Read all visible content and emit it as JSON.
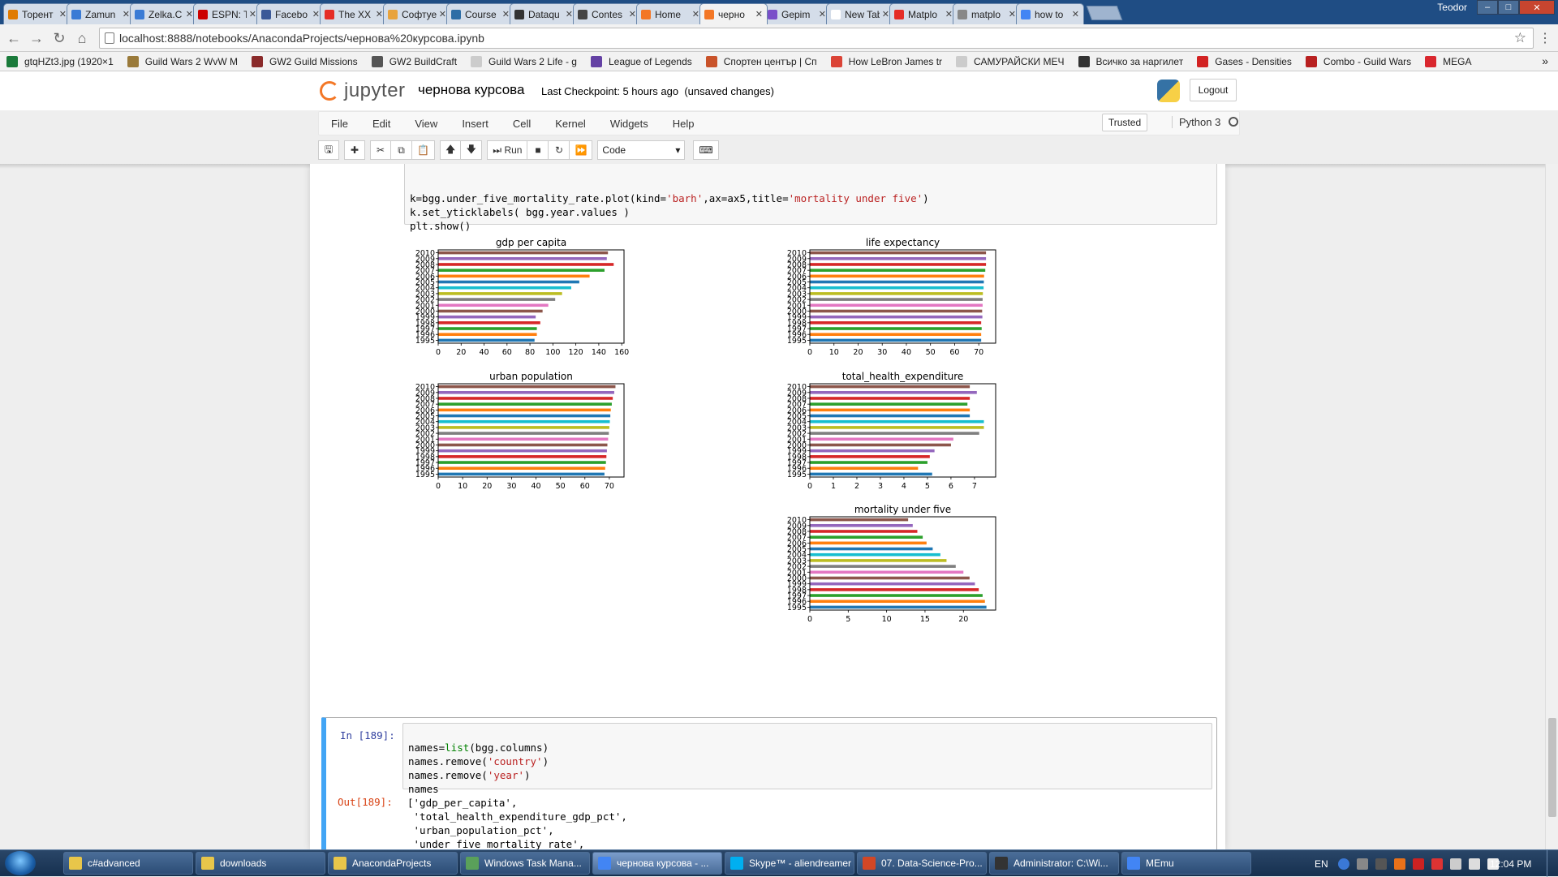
{
  "browser": {
    "tabs": [
      {
        "label": "Торент",
        "color": "#e07b00"
      },
      {
        "label": "Zamun",
        "color": "#3a7bd5"
      },
      {
        "label": "Zelka.C",
        "color": "#3a7bd5"
      },
      {
        "label": "ESPN: T",
        "color": "#cc0000"
      },
      {
        "label": "Facebo",
        "color": "#3b5998"
      },
      {
        "label": "The XX",
        "color": "#e52d27"
      },
      {
        "label": "Софтуе",
        "color": "#e8a33d"
      },
      {
        "label": "Course",
        "color": "#2e6ea6"
      },
      {
        "label": "Dataqu",
        "color": "#333333"
      },
      {
        "label": "Contes",
        "color": "#444444"
      },
      {
        "label": "Home",
        "color": "#f37726"
      },
      {
        "label": "черно",
        "color": "#f37726",
        "active": true
      },
      {
        "label": "Gepim",
        "color": "#7a4fc9"
      },
      {
        "label": "New Tab",
        "color": "#ffffff"
      },
      {
        "label": "Matplo",
        "color": "#e52d27"
      },
      {
        "label": "matplo",
        "color": "#888888"
      },
      {
        "label": "how to",
        "color": "#4285f4"
      }
    ],
    "user": "Teodor",
    "url": "localhost:8888/notebooks/AnacondaProjects/чернова%20курсова.ipynb",
    "bookmarks": [
      {
        "label": "gtqHZt3.jpg (1920×1",
        "color": "#1a7a3a"
      },
      {
        "label": "Guild Wars 2 WvW M",
        "color": "#9a7a3a"
      },
      {
        "label": "GW2 Guild Missions",
        "color": "#8a2a2a"
      },
      {
        "label": "GW2 BuildCraft",
        "color": "#555555"
      },
      {
        "label": "Guild Wars 2 Life - g",
        "color": "#cccccc"
      },
      {
        "label": "League of Legends",
        "color": "#6441a4"
      },
      {
        "label": "Спортен център | Сп",
        "color": "#c9532a"
      },
      {
        "label": "How LeBron James tr",
        "color": "#db4437"
      },
      {
        "label": "САМУРАЙСКИ МЕЧ",
        "color": "#cccccc"
      },
      {
        "label": "Всичко за наргилет",
        "color": "#333333"
      },
      {
        "label": "Gases - Densities",
        "color": "#d22222"
      },
      {
        "label": "Combo - Guild Wars",
        "color": "#b82020"
      },
      {
        "label": "MEGA",
        "color": "#d9272e"
      }
    ]
  },
  "jupyter": {
    "logo_text": "jupyter",
    "notebook_name": "чернова курсова",
    "checkpoint": "Last Checkpoint: 5 hours ago",
    "unsaved": "(unsaved changes)",
    "logout": "Logout",
    "menu": [
      "File",
      "Edit",
      "View",
      "Insert",
      "Cell",
      "Kernel",
      "Widgets",
      "Help"
    ],
    "trusted": "Trusted",
    "kernel": "Python 3",
    "toolbar": {
      "run_label": "Run",
      "cell_type": "Code"
    }
  },
  "cells": {
    "prev_code": [
      {
        "pre": "k=bgg.under_five_mortality_rate.plot(kind=",
        "s1": "'barh'",
        "mid": ",ax=ax5,title=",
        "s2": "'mortality under five'",
        "post": ")"
      },
      {
        "text": "k.set_yticklabels( bgg.year.values )"
      },
      {
        "text": "plt.show()"
      }
    ],
    "in_prompt": "In [189]:",
    "in_code": [
      {
        "pre": "names=",
        "kw": "list",
        "post": "(bgg.columns)"
      },
      {
        "pre": "names.remove(",
        "s": "'country'",
        "post": ")"
      },
      {
        "pre": "names.remove(",
        "s": "'year'",
        "post": ")"
      },
      {
        "pre": "names",
        "s": "",
        "post": ""
      }
    ],
    "out_prompt": "Out[189]:",
    "out_lines": [
      "['gdp_per_capita',",
      " 'total_health_expenditure_gdp_pct',",
      " 'urban_population_pct',",
      " 'under_five_mortality_rate',"
    ]
  },
  "chart_data": [
    {
      "type": "bar",
      "orientation": "horizontal",
      "title": "gdp per capita",
      "categories": [
        "1995",
        "1996",
        "1997",
        "1998",
        "1999",
        "2000",
        "2001",
        "2002",
        "2003",
        "2004",
        "2005",
        "2006",
        "2007",
        "2008",
        "2009",
        "2010"
      ],
      "values": [
        84,
        86,
        86,
        89,
        85,
        91,
        96,
        102,
        108,
        116,
        123,
        132,
        145,
        153,
        147,
        148
      ],
      "xlim": [
        0,
        162
      ],
      "xticks": [
        0,
        20,
        40,
        60,
        80,
        100,
        120,
        140,
        160
      ]
    },
    {
      "type": "bar",
      "orientation": "horizontal",
      "title": "life expectancy",
      "categories": [
        "1995",
        "1996",
        "1997",
        "1998",
        "1999",
        "2000",
        "2001",
        "2002",
        "2003",
        "2004",
        "2005",
        "2006",
        "2007",
        "2008",
        "2009",
        "2010"
      ],
      "values": [
        71.0,
        71.0,
        71.2,
        71.0,
        71.5,
        71.4,
        71.6,
        71.6,
        71.7,
        72.0,
        72.1,
        72.2,
        72.7,
        73.0,
        73.0,
        73.0
      ],
      "xlim": [
        0,
        77
      ],
      "xticks": [
        0,
        10,
        20,
        30,
        40,
        50,
        60,
        70
      ]
    },
    {
      "type": "bar",
      "orientation": "horizontal",
      "title": "urban population",
      "categories": [
        "1995",
        "1996",
        "1997",
        "1998",
        "1999",
        "2000",
        "2001",
        "2002",
        "2003",
        "2004",
        "2005",
        "2006",
        "2007",
        "2008",
        "2009",
        "2010"
      ],
      "values": [
        68.0,
        68.3,
        68.6,
        68.8,
        69.0,
        69.2,
        69.5,
        69.8,
        70.0,
        70.2,
        70.4,
        70.6,
        71.0,
        71.4,
        72.0,
        72.5
      ],
      "xlim": [
        0,
        76
      ],
      "xticks": [
        0,
        10,
        20,
        30,
        40,
        50,
        60,
        70
      ]
    },
    {
      "type": "bar",
      "orientation": "horizontal",
      "title": "total_health_expenditure",
      "categories": [
        "1995",
        "1996",
        "1997",
        "1998",
        "1999",
        "2000",
        "2001",
        "2002",
        "2003",
        "2004",
        "2005",
        "2006",
        "2007",
        "2008",
        "2009",
        "2010"
      ],
      "values": [
        5.2,
        4.6,
        5.0,
        5.1,
        5.3,
        6.0,
        6.1,
        7.2,
        7.4,
        7.4,
        6.8,
        6.8,
        6.7,
        6.8,
        7.1,
        6.8
      ],
      "xlim": [
        0,
        7.9
      ],
      "xticks": [
        0,
        1,
        2,
        3,
        4,
        5,
        6,
        7
      ]
    },
    {
      "type": "bar",
      "orientation": "horizontal",
      "title": "mortality under five",
      "categories": [
        "1995",
        "1996",
        "1997",
        "1998",
        "1999",
        "2000",
        "2001",
        "2002",
        "2003",
        "2004",
        "2005",
        "2006",
        "2007",
        "2008",
        "2009",
        "2010"
      ],
      "values": [
        23.0,
        22.8,
        22.5,
        22.0,
        21.5,
        20.8,
        20.0,
        19.0,
        17.8,
        17.0,
        16.0,
        15.2,
        14.7,
        14.0,
        13.4,
        12.8
      ],
      "xlim": [
        0,
        24.2
      ],
      "xticks": [
        0,
        5,
        10,
        15,
        20
      ]
    }
  ],
  "taskbar": {
    "tasks": [
      {
        "label": "c#advanced",
        "color": "#e8c64a"
      },
      {
        "label": "downloads",
        "color": "#e8c64a"
      },
      {
        "label": "AnacondaProjects",
        "color": "#e8c64a"
      },
      {
        "label": "Windows Task Mana...",
        "color": "#5aa05a"
      },
      {
        "label": "чернова курсова - ...",
        "color": "#4285f4",
        "active": true
      },
      {
        "label": "Skype™ - aliendreamer",
        "color": "#00aff0"
      },
      {
        "label": "07. Data-Science-Pro...",
        "color": "#d24726"
      },
      {
        "label": "Administrator: C:\\Wi...",
        "color": "#333333"
      },
      {
        "label": "MEmu",
        "color": "#4285f4"
      }
    ],
    "lang": "EN",
    "clock": "12:04 PM"
  }
}
